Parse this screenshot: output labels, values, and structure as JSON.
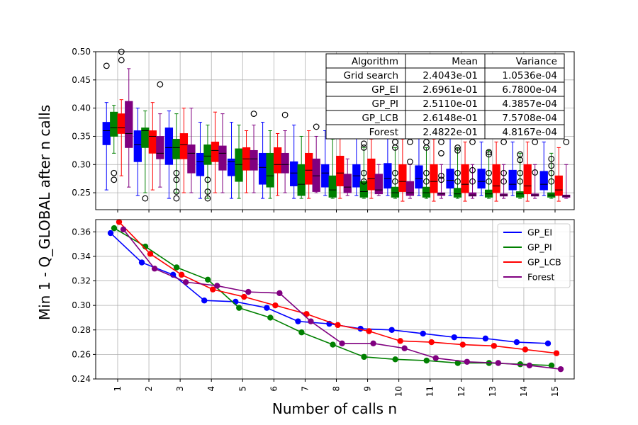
{
  "chart_data": {
    "type": "box+line",
    "ylabel": "Min 1 - Q_GLOBAL after n calls",
    "xlabel": "Number of calls n",
    "x": [
      1,
      2,
      3,
      4,
      5,
      6,
      7,
      8,
      9,
      10,
      11,
      12,
      13,
      14,
      15
    ],
    "top": {
      "type": "box",
      "ylim": [
        0.22,
        0.5
      ],
      "yticks": [
        "0.25",
        "0.30",
        "0.35",
        "0.40",
        "0.45",
        "0.50"
      ],
      "grid": true,
      "series": [
        {
          "name": "GP_EI",
          "color": "#0000ff",
          "boxes": [
            [
              0.255,
              0.335,
              0.36,
              0.375,
              0.41
            ],
            [
              0.245,
              0.305,
              0.335,
              0.36,
              0.4
            ],
            [
              0.24,
              0.3,
              0.33,
              0.365,
              0.395
            ],
            [
              0.24,
              0.28,
              0.305,
              0.32,
              0.375
            ],
            [
              0.24,
              0.28,
              0.305,
              0.31,
              0.375
            ],
            [
              0.24,
              0.265,
              0.295,
              0.32,
              0.375
            ],
            [
              0.24,
              0.262,
              0.285,
              0.305,
              0.37
            ],
            [
              0.245,
              0.26,
              0.285,
              0.3,
              0.36
            ],
            [
              0.245,
              0.26,
              0.28,
              0.3,
              0.36
            ],
            [
              0.245,
              0.258,
              0.275,
              0.302,
              0.36
            ],
            [
              0.245,
              0.258,
              0.275,
              0.298,
              0.35
            ],
            [
              0.245,
              0.258,
              0.272,
              0.292,
              0.35
            ],
            [
              0.245,
              0.258,
              0.27,
              0.292,
              0.34
            ],
            [
              0.245,
              0.255,
              0.265,
              0.29,
              0.34
            ],
            [
              0.245,
              0.255,
              0.265,
              0.288,
              0.34
            ]
          ],
          "fliers": [
            [
              0.475
            ],
            [],
            [],
            [],
            [],
            [],
            [],
            [],
            [],
            [],
            [],
            [],
            [],
            [],
            []
          ]
        },
        {
          "name": "GP_PI",
          "color": "#008000",
          "boxes": [
            [
              0.32,
              0.35,
              0.365,
              0.393,
              0.405
            ],
            [
              0.25,
              0.33,
              0.36,
              0.365,
              0.395
            ],
            [
              0.25,
              0.31,
              0.33,
              0.345,
              0.39
            ],
            [
              0.24,
              0.3,
              0.315,
              0.335,
              0.37
            ],
            [
              0.24,
              0.27,
              0.3,
              0.328,
              0.37
            ],
            [
              0.24,
              0.26,
              0.28,
              0.32,
              0.36
            ],
            [
              0.24,
              0.245,
              0.265,
              0.3,
              0.35
            ],
            [
              0.24,
              0.242,
              0.255,
              0.28,
              0.345
            ],
            [
              0.24,
              0.242,
              0.252,
              0.27,
              0.33
            ],
            [
              0.24,
              0.242,
              0.25,
              0.26,
              0.33
            ],
            [
              0.24,
              0.242,
              0.25,
              0.26,
              0.33
            ],
            [
              0.24,
              0.242,
              0.248,
              0.258,
              0.33
            ],
            [
              0.24,
              0.242,
              0.248,
              0.255,
              0.325
            ],
            [
              0.24,
              0.242,
              0.248,
              0.252,
              0.32
            ],
            [
              0.24,
              0.242,
              0.246,
              0.25,
              0.32
            ]
          ],
          "fliers": [
            [
              0.285,
              0.273
            ],
            [
              0.24
            ],
            [
              0.285,
              0.273,
              0.252,
              0.24
            ],
            [
              0.273,
              0.252,
              0.24
            ],
            [],
            [],
            [],
            [],
            [
              0.337,
              0.33,
              0.285,
              0.27
            ],
            [
              0.34,
              0.33,
              0.285,
              0.27
            ],
            [
              0.34,
              0.33,
              0.285,
              0.27
            ],
            [
              0.33,
              0.325,
              0.285,
              0.27
            ],
            [
              0.322,
              0.318,
              0.285,
              0.27
            ],
            [
              0.318,
              0.308,
              0.285,
              0.27
            ],
            [
              0.31,
              0.298,
              0.285,
              0.27
            ]
          ]
        },
        {
          "name": "GP_LCB",
          "color": "#ff0000",
          "boxes": [
            [
              0.28,
              0.355,
              0.365,
              0.39,
              0.415
            ],
            [
              0.255,
              0.32,
              0.35,
              0.36,
              0.41
            ],
            [
              0.25,
              0.31,
              0.335,
              0.355,
              0.4
            ],
            [
              0.25,
              0.305,
              0.325,
              0.34,
              0.393
            ],
            [
              0.25,
              0.29,
              0.31,
              0.33,
              0.36
            ],
            [
              0.245,
              0.285,
              0.3,
              0.33,
              0.355
            ],
            [
              0.24,
              0.265,
              0.29,
              0.32,
              0.36
            ],
            [
              0.24,
              0.262,
              0.285,
              0.315,
              0.35
            ],
            [
              0.24,
              0.255,
              0.275,
              0.31,
              0.345
            ],
            [
              0.235,
              0.252,
              0.27,
              0.3,
              0.345
            ],
            [
              0.235,
              0.25,
              0.27,
              0.3,
              0.345
            ],
            [
              0.235,
              0.25,
              0.265,
              0.3,
              0.34
            ],
            [
              0.235,
              0.25,
              0.262,
              0.3,
              0.34
            ],
            [
              0.235,
              0.248,
              0.262,
              0.3,
              0.34
            ],
            [
              0.235,
              0.245,
              0.255,
              0.28,
              0.33
            ]
          ],
          "fliers": [
            [
              0.5,
              0.485
            ],
            [],
            [],
            [],
            [],
            [],
            [],
            [],
            [],
            [],
            [],
            [],
            [],
            [],
            []
          ]
        },
        {
          "name": "Forest",
          "color": "#800080",
          "boxes": [
            [
              0.26,
              0.33,
              0.355,
              0.412,
              0.47
            ],
            [
              0.26,
              0.31,
              0.32,
              0.35,
              0.39
            ],
            [
              0.25,
              0.285,
              0.32,
              0.335,
              0.4
            ],
            [
              0.25,
              0.29,
              0.32,
              0.333,
              0.39
            ],
            [
              0.25,
              0.29,
              0.31,
              0.325,
              0.37
            ],
            [
              0.25,
              0.285,
              0.3,
              0.32,
              0.36
            ],
            [
              0.25,
              0.252,
              0.28,
              0.31,
              0.35
            ],
            [
              0.245,
              0.25,
              0.26,
              0.283,
              0.31
            ],
            [
              0.245,
              0.248,
              0.255,
              0.283,
              0.3
            ],
            [
              0.24,
              0.245,
              0.25,
              0.27,
              0.3
            ],
            [
              0.24,
              0.245,
              0.248,
              0.25,
              0.3
            ],
            [
              0.24,
              0.244,
              0.246,
              0.25,
              0.3
            ],
            [
              0.24,
              0.244,
              0.246,
              0.248,
              0.3
            ],
            [
              0.24,
              0.244,
              0.246,
              0.248,
              0.3
            ],
            [
              0.24,
              0.242,
              0.244,
              0.246,
              0.3
            ]
          ],
          "fliers": [
            [],
            [
              0.442
            ],
            [],
            [],
            [
              0.39
            ],
            [
              0.388
            ],
            [
              0.367
            ],
            [],
            [],
            [
              0.34,
              0.305
            ],
            [
              0.34,
              0.32,
              0.28,
              0.273
            ],
            [
              0.34,
              0.29,
              0.27
            ],
            [
              0.34,
              0.285,
              0.27
            ],
            [
              0.34,
              0.286
            ],
            [
              0.34
            ]
          ]
        }
      ]
    },
    "table": {
      "columns": [
        "Algorithm",
        "Mean",
        "Variance"
      ],
      "rows": [
        [
          "Grid search",
          "2.4043e-01",
          "1.0536e-04"
        ],
        [
          "GP_EI",
          "2.6961e-01",
          "6.7800e-04"
        ],
        [
          "GP_PI",
          "2.5110e-01",
          "4.3857e-04"
        ],
        [
          "GP_LCB",
          "2.6148e-01",
          "7.5708e-04"
        ],
        [
          "Forest",
          "2.4822e-01",
          "4.8167e-04"
        ]
      ]
    },
    "bottom": {
      "type": "line",
      "ylim": [
        0.24,
        0.37
      ],
      "yticks": [
        "0.24",
        "0.26",
        "0.28",
        "0.30",
        "0.32",
        "0.34",
        "0.36"
      ],
      "grid": true,
      "legend_position": "top-right",
      "series": [
        {
          "name": "GP_EI",
          "color": "#0000ff",
          "values": [
            0.359,
            0.335,
            0.325,
            0.304,
            0.303,
            0.298,
            0.287,
            0.285,
            0.281,
            0.28,
            0.277,
            0.274,
            0.273,
            0.27,
            0.269
          ]
        },
        {
          "name": "GP_PI",
          "color": "#008000",
          "values": [
            0.363,
            0.348,
            0.331,
            0.321,
            0.298,
            0.29,
            0.278,
            0.268,
            0.258,
            0.256,
            0.255,
            0.253,
            0.253,
            0.252,
            0.251
          ]
        },
        {
          "name": "GP_LCB",
          "color": "#ff0000",
          "values": [
            0.368,
            0.342,
            0.325,
            0.313,
            0.307,
            0.3,
            0.293,
            0.284,
            0.279,
            0.271,
            0.27,
            0.268,
            0.267,
            0.264,
            0.261
          ]
        },
        {
          "name": "Forest",
          "color": "#800080",
          "values": [
            0.362,
            0.33,
            0.319,
            0.316,
            0.311,
            0.31,
            0.287,
            0.269,
            0.269,
            0.265,
            0.257,
            0.254,
            0.253,
            0.251,
            0.248
          ]
        }
      ]
    }
  }
}
